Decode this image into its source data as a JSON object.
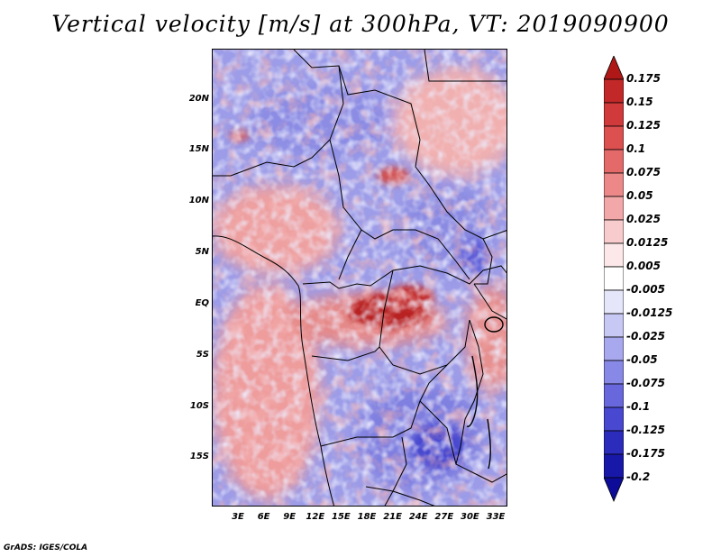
{
  "title": "Vertical velocity [m/s] at 300hPa, VT: 2019090900",
  "footer": "GrADS: IGES/COLA",
  "map": {
    "lat_labels": [
      "20N",
      "15N",
      "10N",
      "5N",
      "EQ",
      "5S",
      "10S",
      "15S"
    ],
    "lon_labels": [
      "3E",
      "6E",
      "9E",
      "12E",
      "15E",
      "18E",
      "21E",
      "24E",
      "27E",
      "30E",
      "33E"
    ]
  },
  "colorbar": {
    "labels": [
      "0.175",
      "0.15",
      "0.125",
      "0.1",
      "0.075",
      "0.05",
      "0.025",
      "0.0125",
      "0.005",
      "-0.005",
      "-0.0125",
      "-0.025",
      "-0.05",
      "-0.075",
      "-0.1",
      "-0.125",
      "-0.175",
      "-0.2"
    ],
    "colors": [
      "#b01818",
      "#c22828",
      "#d03a3a",
      "#dc5050",
      "#e46a6a",
      "#ec8888",
      "#f2a8a8",
      "#f8cccc",
      "#fce8e8",
      "#ffffff",
      "#e6e6fa",
      "#c8c8f4",
      "#a8a8ee",
      "#8888e6",
      "#6868dc",
      "#4848d0",
      "#2c2cbc",
      "#1818a8",
      "#0c0c98"
    ]
  }
}
